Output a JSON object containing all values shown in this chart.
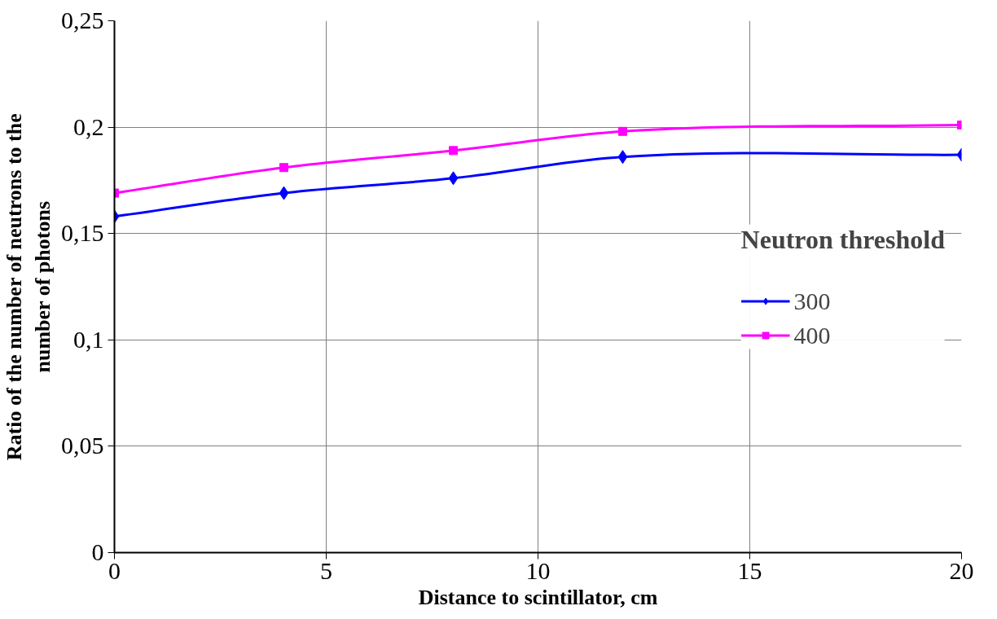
{
  "chart_data": {
    "type": "line",
    "xlabel": "Distance to scintillator, cm",
    "ylabel": "Ratio of the number of neutrons to the number of photons",
    "legend_title": "Neutron threshold",
    "x": [
      0,
      4,
      8,
      12,
      20
    ],
    "series": [
      {
        "name": "300",
        "color": "#0000ff",
        "marker": "diamond",
        "values": [
          0.158,
          0.169,
          0.176,
          0.186,
          0.187
        ]
      },
      {
        "name": "400",
        "color": "#ff00ff",
        "marker": "square",
        "values": [
          0.169,
          0.181,
          0.189,
          0.198,
          0.201
        ]
      }
    ],
    "xlim": [
      0,
      20
    ],
    "xticks": [
      0,
      5,
      10,
      15,
      20
    ],
    "ylim": [
      0,
      0.25
    ],
    "yticks": [
      {
        "value": 0,
        "label": "0"
      },
      {
        "value": 0.05,
        "label": "0,05"
      },
      {
        "value": 0.1,
        "label": "0,1"
      },
      {
        "value": 0.15,
        "label": "0,15"
      },
      {
        "value": 0.2,
        "label": "0,2"
      },
      {
        "value": 0.25,
        "label": "0,25"
      }
    ],
    "grid": true,
    "legend": "right",
    "line_style": "solid"
  }
}
